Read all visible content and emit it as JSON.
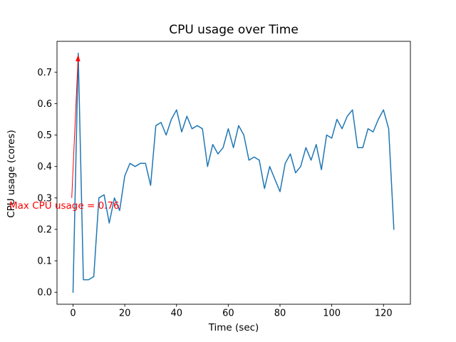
{
  "chart_data": {
    "type": "line",
    "title": "CPU usage over Time",
    "xlabel": "Time (sec)",
    "ylabel": "CPU usage (cores)",
    "line_color": "#1f77b4",
    "grid": false,
    "legend": null,
    "x": [
      0,
      2,
      4,
      6,
      8,
      10,
      12,
      14,
      16,
      18,
      20,
      22,
      24,
      26,
      28,
      30,
      32,
      34,
      36,
      38,
      40,
      42,
      44,
      46,
      48,
      50,
      52,
      54,
      56,
      58,
      60,
      62,
      64,
      66,
      68,
      70,
      72,
      74,
      76,
      78,
      80,
      82,
      84,
      86,
      88,
      90,
      92,
      94,
      96,
      98,
      100,
      102,
      104,
      106,
      108,
      110,
      112,
      114,
      116,
      118,
      120,
      122,
      124
    ],
    "values": [
      0.0,
      0.76,
      0.04,
      0.04,
      0.05,
      0.3,
      0.31,
      0.22,
      0.3,
      0.26,
      0.37,
      0.41,
      0.4,
      0.41,
      0.41,
      0.34,
      0.53,
      0.54,
      0.5,
      0.55,
      0.58,
      0.51,
      0.56,
      0.52,
      0.53,
      0.52,
      0.4,
      0.47,
      0.44,
      0.46,
      0.52,
      0.46,
      0.53,
      0.5,
      0.42,
      0.43,
      0.42,
      0.33,
      0.4,
      0.36,
      0.32,
      0.41,
      0.44,
      0.38,
      0.4,
      0.46,
      0.42,
      0.47,
      0.39,
      0.5,
      0.49,
      0.55,
      0.52,
      0.56,
      0.58,
      0.46,
      0.46,
      0.52,
      0.51,
      0.55,
      0.58,
      0.52,
      0.2
    ],
    "xlim": [
      -6.2,
      130.4
    ],
    "ylim": [
      -0.038,
      0.798
    ],
    "xticks": [
      0,
      20,
      40,
      60,
      80,
      100,
      120
    ],
    "yticks": [
      0.0,
      0.1,
      0.2,
      0.3,
      0.4,
      0.5,
      0.6,
      0.7
    ],
    "annotation": {
      "text": "Max CPU usage = 0.76",
      "max_value": 0.76,
      "color": "#ff0000",
      "target": {
        "x": 2,
        "y": 0.755
      },
      "tail": {
        "x": -0.5,
        "y": 0.3
      }
    }
  }
}
